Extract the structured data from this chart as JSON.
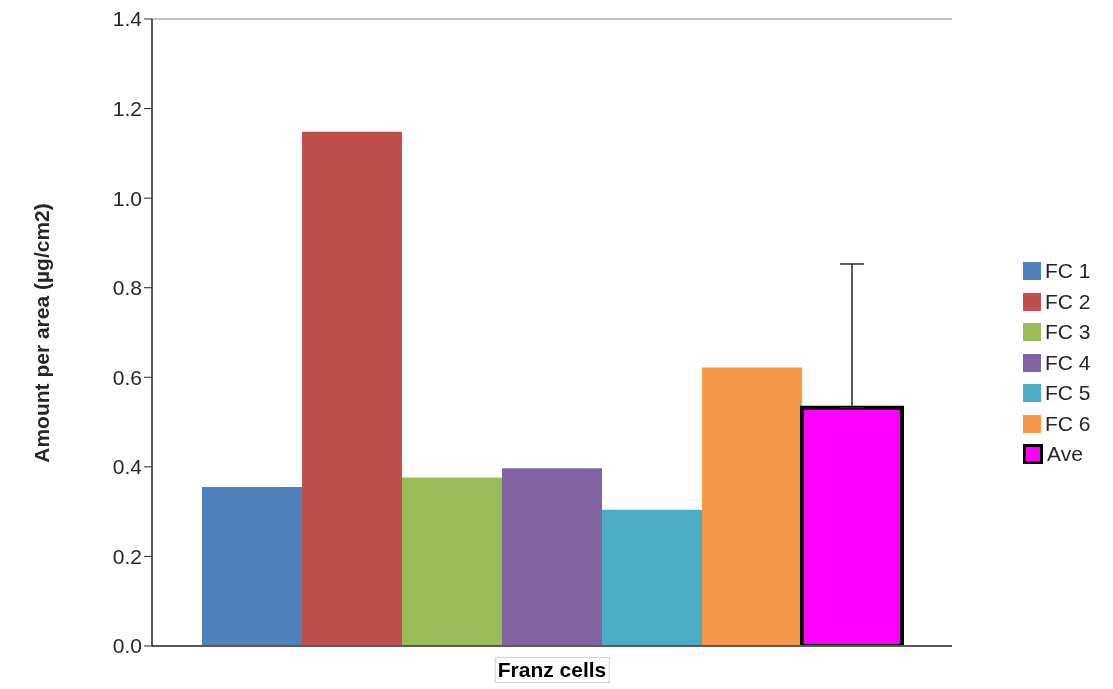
{
  "chart_data": {
    "type": "bar",
    "xlabel": "Franz cells",
    "ylabel": "Amount per area (µg/cm2)",
    "categories": [
      null
    ],
    "series": [
      {
        "name": "FC 1",
        "color": "#4f81bd",
        "values": [
          0.355
        ]
      },
      {
        "name": "FC 2",
        "color": "#c0504d",
        "values": [
          1.148
        ]
      },
      {
        "name": "FC 3",
        "color": "#9bbb59",
        "values": [
          0.376
        ]
      },
      {
        "name": "FC 4",
        "color": "#8064a2",
        "values": [
          0.397
        ]
      },
      {
        "name": "FC 5",
        "color": "#4bacc6",
        "values": [
          0.304
        ]
      },
      {
        "name": "FC 6",
        "color": "#f79646",
        "values": [
          0.622
        ]
      },
      {
        "name": "Ave",
        "color": "#ff00ff",
        "values": [
          0.532
        ],
        "errors": [
          [
            0.532,
            0.853
          ]
        ]
      }
    ],
    "ylim": [
      0,
      1.4
    ],
    "yticks": [
      {
        "value": 0,
        "label": "0.0"
      },
      0.2,
      0.4,
      0.6,
      0.8,
      {
        "value": 1,
        "label": "1.0"
      },
      1.2,
      1.4
    ],
    "ref_lines": [
      {
        "axis": "y",
        "value": 1.4,
        "color": "#bfbfbf"
      }
    ],
    "grid": false,
    "legend": "right"
  }
}
